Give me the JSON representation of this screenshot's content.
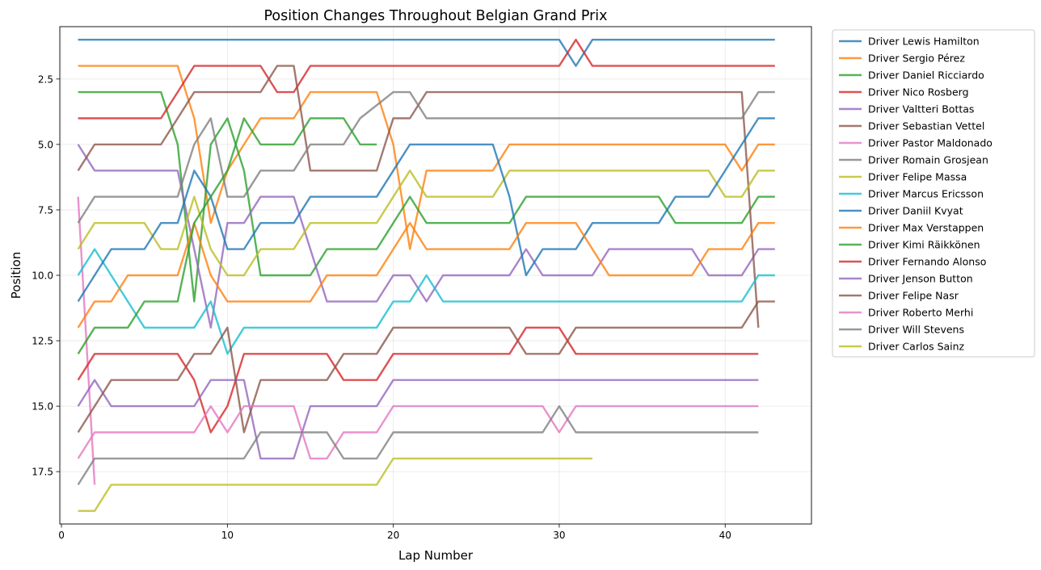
{
  "chart_data": {
    "type": "line",
    "title": "Position Changes Throughout Belgian Grand Prix",
    "xlabel": "Lap Number",
    "ylabel": "Position",
    "xlim": [
      -0.1,
      45.2
    ],
    "ylim": [
      19.5,
      0.5
    ],
    "y_inverted": true,
    "grid": true,
    "legend_position": "outside-right",
    "xticks": [
      0,
      10,
      20,
      30,
      40
    ],
    "xtick_labels": [
      "0",
      "10",
      "20",
      "30",
      "40"
    ],
    "yticks": [
      2.5,
      5.0,
      7.5,
      10.0,
      12.5,
      15.0,
      17.5
    ],
    "ytick_labels": [
      "2.5",
      "5.0",
      "7.5",
      "10.0",
      "12.5",
      "15.0",
      "17.5"
    ],
    "series": [
      {
        "name": "Driver Lewis Hamilton",
        "color": "#1f77b4",
        "points": [
          [
            1,
            1
          ],
          [
            30,
            1
          ],
          [
            31,
            2
          ],
          [
            32,
            1
          ],
          [
            43,
            1
          ]
        ]
      },
      {
        "name": "Driver Sergio Pérez",
        "color": "#ff7f0e",
        "points": [
          [
            1,
            2
          ],
          [
            7,
            2
          ],
          [
            8,
            4
          ],
          [
            9,
            8
          ],
          [
            10,
            6
          ],
          [
            11,
            5
          ],
          [
            12,
            4
          ],
          [
            14,
            4
          ],
          [
            15,
            3
          ],
          [
            19,
            3
          ],
          [
            20,
            5
          ],
          [
            21,
            9
          ],
          [
            22,
            6
          ],
          [
            26,
            6
          ],
          [
            27,
            5
          ],
          [
            40,
            5
          ],
          [
            41,
            6
          ],
          [
            42,
            5
          ],
          [
            43,
            5
          ]
        ]
      },
      {
        "name": "Driver Daniel Ricciardo",
        "color": "#2ca02c",
        "points": [
          [
            1,
            3
          ],
          [
            6,
            3
          ],
          [
            7,
            5
          ],
          [
            8,
            11
          ],
          [
            9,
            5
          ],
          [
            10,
            4
          ],
          [
            11,
            6
          ],
          [
            12,
            10
          ],
          [
            15,
            10
          ],
          [
            16,
            9
          ],
          [
            19,
            9
          ],
          [
            20,
            8
          ],
          [
            21,
            7
          ],
          [
            22,
            8
          ],
          [
            27,
            8
          ],
          [
            28,
            7
          ],
          [
            36,
            7
          ],
          [
            37,
            8
          ],
          [
            41,
            8
          ],
          [
            42,
            7
          ],
          [
            43,
            7
          ]
        ]
      },
      {
        "name": "Driver Nico Rosberg",
        "color": "#d62728",
        "points": [
          [
            1,
            4
          ],
          [
            6,
            4
          ],
          [
            7,
            3
          ],
          [
            8,
            2
          ],
          [
            12,
            2
          ],
          [
            13,
            3
          ],
          [
            14,
            3
          ],
          [
            15,
            2
          ],
          [
            30,
            2
          ],
          [
            31,
            1
          ],
          [
            32,
            2
          ],
          [
            43,
            2
          ]
        ]
      },
      {
        "name": "Driver Valtteri Bottas",
        "color": "#9467bd",
        "points": [
          [
            1,
            5
          ],
          [
            2,
            6
          ],
          [
            7,
            6
          ],
          [
            8,
            9
          ],
          [
            9,
            12
          ],
          [
            10,
            8
          ],
          [
            11,
            8
          ],
          [
            12,
            7
          ],
          [
            14,
            7
          ],
          [
            15,
            9
          ],
          [
            16,
            11
          ],
          [
            19,
            11
          ],
          [
            20,
            10
          ],
          [
            21,
            10
          ],
          [
            22,
            11
          ],
          [
            23,
            10
          ],
          [
            27,
            10
          ],
          [
            28,
            9
          ],
          [
            29,
            10
          ],
          [
            32,
            10
          ],
          [
            33,
            9
          ],
          [
            38,
            9
          ],
          [
            39,
            10
          ],
          [
            41,
            10
          ],
          [
            42,
            9
          ],
          [
            43,
            9
          ]
        ]
      },
      {
        "name": "Driver Sebastian Vettel",
        "color": "#8c564b",
        "points": [
          [
            1,
            6
          ],
          [
            2,
            5
          ],
          [
            6,
            5
          ],
          [
            7,
            4
          ],
          [
            8,
            3
          ],
          [
            12,
            3
          ],
          [
            13,
            2
          ],
          [
            14,
            2
          ],
          [
            15,
            6
          ],
          [
            19,
            6
          ],
          [
            20,
            4
          ],
          [
            21,
            4
          ],
          [
            22,
            3
          ],
          [
            41,
            3
          ],
          [
            42,
            12
          ]
        ]
      },
      {
        "name": "Driver Pastor Maldonado",
        "color": "#e377c2",
        "points": [
          [
            1,
            7
          ],
          [
            2,
            18
          ]
        ]
      },
      {
        "name": "Driver Romain Grosjean",
        "color": "#7f7f7f",
        "points": [
          [
            1,
            8
          ],
          [
            2,
            7
          ],
          [
            7,
            7
          ],
          [
            8,
            5
          ],
          [
            9,
            4
          ],
          [
            10,
            7
          ],
          [
            11,
            7
          ],
          [
            12,
            6
          ],
          [
            14,
            6
          ],
          [
            15,
            5
          ],
          [
            17,
            5
          ],
          [
            18,
            4
          ],
          [
            20,
            3
          ],
          [
            21,
            3
          ],
          [
            22,
            4
          ],
          [
            41,
            4
          ],
          [
            42,
            3
          ],
          [
            43,
            3
          ]
        ]
      },
      {
        "name": "Driver Felipe Massa",
        "color": "#bcbd22",
        "points": [
          [
            1,
            9
          ],
          [
            2,
            8
          ],
          [
            5,
            8
          ],
          [
            6,
            9
          ],
          [
            7,
            9
          ],
          [
            8,
            7
          ],
          [
            9,
            9
          ],
          [
            10,
            10
          ],
          [
            11,
            10
          ],
          [
            12,
            9
          ],
          [
            14,
            9
          ],
          [
            15,
            8
          ],
          [
            19,
            8
          ],
          [
            20,
            7
          ],
          [
            21,
            6
          ],
          [
            22,
            7
          ],
          [
            26,
            7
          ],
          [
            27,
            6
          ],
          [
            39,
            6
          ],
          [
            40,
            7
          ],
          [
            41,
            7
          ],
          [
            42,
            6
          ],
          [
            43,
            6
          ]
        ]
      },
      {
        "name": "Driver Marcus Ericsson",
        "color": "#17becf",
        "points": [
          [
            1,
            10
          ],
          [
            2,
            9
          ],
          [
            3,
            10
          ],
          [
            5,
            12
          ],
          [
            8,
            12
          ],
          [
            9,
            11
          ],
          [
            10,
            13
          ],
          [
            11,
            12
          ],
          [
            19,
            12
          ],
          [
            20,
            11
          ],
          [
            21,
            11
          ],
          [
            22,
            10
          ],
          [
            23,
            11
          ],
          [
            41,
            11
          ],
          [
            42,
            10
          ],
          [
            43,
            10
          ]
        ]
      },
      {
        "name": "Driver Daniil Kvyat",
        "color": "#1f77b4",
        "points": [
          [
            1,
            11
          ],
          [
            3,
            9
          ],
          [
            5,
            9
          ],
          [
            6,
            8
          ],
          [
            7,
            8
          ],
          [
            8,
            6
          ],
          [
            9,
            7
          ],
          [
            10,
            9
          ],
          [
            11,
            9
          ],
          [
            12,
            8
          ],
          [
            14,
            8
          ],
          [
            15,
            7
          ],
          [
            19,
            7
          ],
          [
            20,
            6
          ],
          [
            21,
            5
          ],
          [
            26,
            5
          ],
          [
            27,
            7
          ],
          [
            28,
            10
          ],
          [
            29,
            9
          ],
          [
            31,
            9
          ],
          [
            32,
            8
          ],
          [
            36,
            8
          ],
          [
            37,
            7
          ],
          [
            39,
            7
          ],
          [
            42,
            4
          ],
          [
            43,
            4
          ]
        ]
      },
      {
        "name": "Driver Max Verstappen",
        "color": "#ff7f0e",
        "points": [
          [
            1,
            12
          ],
          [
            2,
            11
          ],
          [
            3,
            11
          ],
          [
            4,
            10
          ],
          [
            7,
            10
          ],
          [
            8,
            8
          ],
          [
            9,
            10
          ],
          [
            10,
            11
          ],
          [
            15,
            11
          ],
          [
            16,
            10
          ],
          [
            19,
            10
          ],
          [
            20,
            9
          ],
          [
            21,
            8
          ],
          [
            22,
            9
          ],
          [
            27,
            9
          ],
          [
            28,
            8
          ],
          [
            31,
            8
          ],
          [
            33,
            10
          ],
          [
            38,
            10
          ],
          [
            39,
            9
          ],
          [
            41,
            9
          ],
          [
            42,
            8
          ],
          [
            43,
            8
          ]
        ]
      },
      {
        "name": "Driver Kimi Räikkönen",
        "color": "#2ca02c",
        "points": [
          [
            1,
            13
          ],
          [
            2,
            12
          ],
          [
            4,
            12
          ],
          [
            5,
            11
          ],
          [
            7,
            11
          ],
          [
            8,
            8
          ],
          [
            9,
            7
          ],
          [
            10,
            6
          ],
          [
            11,
            4
          ],
          [
            12,
            5
          ],
          [
            14,
            5
          ],
          [
            15,
            4
          ],
          [
            17,
            4
          ],
          [
            18,
            5
          ],
          [
            19,
            5
          ]
        ]
      },
      {
        "name": "Driver Fernando Alonso",
        "color": "#d62728",
        "points": [
          [
            1,
            14
          ],
          [
            2,
            13
          ],
          [
            7,
            13
          ],
          [
            8,
            14
          ],
          [
            9,
            16
          ],
          [
            10,
            15
          ],
          [
            11,
            13
          ],
          [
            16,
            13
          ],
          [
            17,
            14
          ],
          [
            19,
            14
          ],
          [
            20,
            13
          ],
          [
            27,
            13
          ],
          [
            28,
            12
          ],
          [
            30,
            12
          ],
          [
            31,
            13
          ],
          [
            42,
            13
          ]
        ]
      },
      {
        "name": "Driver Jenson Button",
        "color": "#9467bd",
        "points": [
          [
            1,
            15
          ],
          [
            2,
            14
          ],
          [
            3,
            15
          ],
          [
            8,
            15
          ],
          [
            9,
            14
          ],
          [
            11,
            14
          ],
          [
            12,
            17
          ],
          [
            14,
            17
          ],
          [
            15,
            15
          ],
          [
            19,
            15
          ],
          [
            20,
            14
          ],
          [
            42,
            14
          ]
        ]
      },
      {
        "name": "Driver Felipe Nasr",
        "color": "#8c564b",
        "points": [
          [
            1,
            16
          ],
          [
            3,
            14
          ],
          [
            7,
            14
          ],
          [
            8,
            13
          ],
          [
            9,
            13
          ],
          [
            10,
            12
          ],
          [
            11,
            16
          ],
          [
            12,
            14
          ],
          [
            16,
            14
          ],
          [
            17,
            13
          ],
          [
            19,
            13
          ],
          [
            20,
            12
          ],
          [
            27,
            12
          ],
          [
            28,
            13
          ],
          [
            30,
            13
          ],
          [
            31,
            12
          ],
          [
            41,
            12
          ],
          [
            42,
            11
          ],
          [
            43,
            11
          ]
        ]
      },
      {
        "name": "Driver Roberto Merhi",
        "color": "#e377c2",
        "points": [
          [
            1,
            17
          ],
          [
            2,
            16
          ],
          [
            8,
            16
          ],
          [
            9,
            15
          ],
          [
            10,
            16
          ],
          [
            11,
            15
          ],
          [
            14,
            15
          ],
          [
            15,
            17
          ],
          [
            16,
            17
          ],
          [
            17,
            16
          ],
          [
            19,
            16
          ],
          [
            20,
            15
          ],
          [
            29,
            15
          ],
          [
            30,
            16
          ],
          [
            31,
            15
          ],
          [
            42,
            15
          ]
        ]
      },
      {
        "name": "Driver Will Stevens",
        "color": "#7f7f7f",
        "points": [
          [
            1,
            18
          ],
          [
            2,
            17
          ],
          [
            11,
            17
          ],
          [
            12,
            16
          ],
          [
            16,
            16
          ],
          [
            17,
            17
          ],
          [
            19,
            17
          ],
          [
            20,
            16
          ],
          [
            29,
            16
          ],
          [
            30,
            15
          ],
          [
            31,
            16
          ],
          [
            42,
            16
          ]
        ]
      },
      {
        "name": "Driver Carlos Sainz",
        "color": "#bcbd22",
        "points": [
          [
            1,
            19
          ],
          [
            2,
            19
          ],
          [
            3,
            18
          ],
          [
            19,
            18
          ],
          [
            20,
            17
          ],
          [
            32,
            17
          ]
        ]
      }
    ]
  }
}
